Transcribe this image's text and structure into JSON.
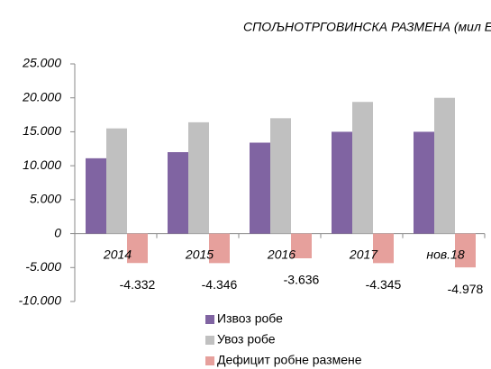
{
  "chart_data": {
    "type": "bar",
    "title": "СПОЉНОТРГОВИНСКА РАЗМЕНА (мил ЕУР)",
    "categories": [
      "2014",
      "2015",
      "2016",
      "2017",
      "нов.18"
    ],
    "series": [
      {
        "name": "Извоз робе",
        "color": "#8064a2",
        "values": [
          11100,
          12000,
          13400,
          15000,
          15000
        ]
      },
      {
        "name": "Увоз робе",
        "color": "#c0c0c0",
        "values": [
          15500,
          16400,
          17000,
          19400,
          20000
        ]
      },
      {
        "name": "Дефицит робне размене",
        "color": "#e6a09c",
        "values": [
          -4332,
          -4346,
          -3636,
          -4345,
          -4978
        ],
        "value_labels": [
          "-4.332",
          "-4.346",
          "-3.636",
          "-4.345",
          "-4.978"
        ]
      }
    ],
    "ylim": [
      -10000,
      25000
    ],
    "yticks": [
      {
        "value": -10000,
        "label": "-10.000"
      },
      {
        "value": -5000,
        "label": "-5.000"
      },
      0,
      {
        "value": 5000,
        "label": "5.000"
      },
      {
        "value": 10000,
        "label": "10.000"
      },
      {
        "value": 15000,
        "label": "15.000"
      },
      {
        "value": 20000,
        "label": "20.000"
      },
      {
        "value": 25000,
        "label": "25.000"
      }
    ],
    "legend": "bottom"
  }
}
